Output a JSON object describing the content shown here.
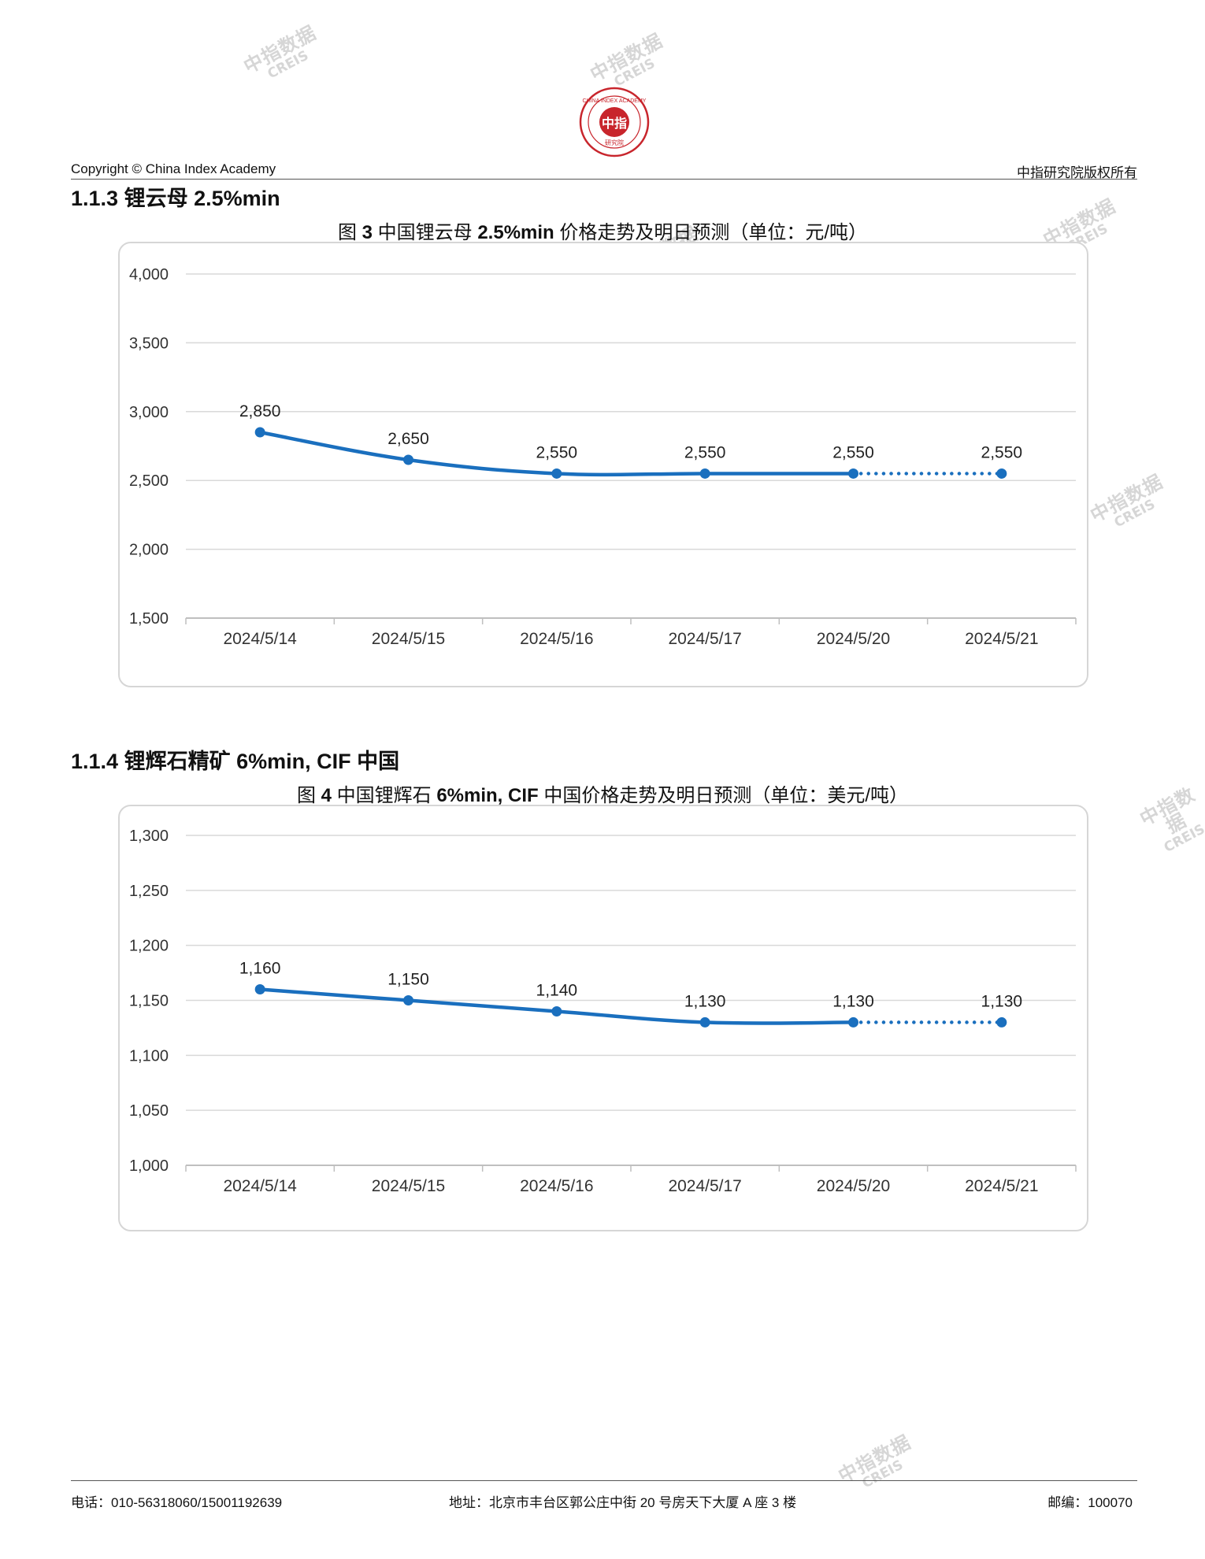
{
  "header": {
    "logo_text": "CHINA INDEX ACADEMY",
    "logo_center": "中指",
    "logo_bottom": "研究院",
    "copyright": "Copyright © China Index Academy",
    "rights": "中指研究院版权所有"
  },
  "watermark": {
    "line1": "中指数据",
    "line2": "CREIS",
    "color": "#c9c9c9"
  },
  "sections": [
    {
      "heading_number": "1.1.3",
      "heading_text": "锂云母 2.5%min",
      "caption_prefix": "图",
      "caption_number": "3",
      "caption_text": "中国锂云母",
      "caption_bold": "2.5%min",
      "caption_suffix": "价格走势及明日预测（单位：元/吨）"
    },
    {
      "heading_number": "1.1.4",
      "heading_text": "锂辉石精矿 6%min, CIF 中国",
      "caption_prefix": "图",
      "caption_number": "4",
      "caption_text": "中国锂辉石",
      "caption_bold": "6%min, CIF",
      "caption_suffix": "中国价格走势及明日预测（单位：美元/吨）"
    }
  ],
  "chart_data": [
    {
      "type": "line",
      "categories": [
        "2024/5/14",
        "2024/5/15",
        "2024/5/16",
        "2024/5/17",
        "2024/5/20",
        "2024/5/21"
      ],
      "series": [
        {
          "values": [
            2850,
            2650,
            2550,
            2550,
            2550,
            2550
          ],
          "forecast_last": true
        }
      ],
      "data_labels": [
        "2,850",
        "2,650",
        "2,550",
        "2,550",
        "2,550",
        "2,550"
      ],
      "yticks": [
        "1,500",
        "2,000",
        "2,500",
        "3,000",
        "3,500",
        "4,000"
      ],
      "ylim": [
        1500,
        4000
      ],
      "grid": true,
      "line_color": "#1a6fbe"
    },
    {
      "type": "line",
      "categories": [
        "2024/5/14",
        "2024/5/15",
        "2024/5/16",
        "2024/5/17",
        "2024/5/20",
        "2024/5/21"
      ],
      "series": [
        {
          "values": [
            1160,
            1150,
            1140,
            1130,
            1130,
            1130
          ],
          "forecast_last": true
        }
      ],
      "data_labels": [
        "1,160",
        "1,150",
        "1,140",
        "1,130",
        "1,130",
        "1,130"
      ],
      "yticks": [
        "1,000",
        "1,050",
        "1,100",
        "1,150",
        "1,200",
        "1,250",
        "1,300"
      ],
      "ylim": [
        1000,
        1300
      ],
      "grid": true,
      "line_color": "#1a6fbe"
    }
  ],
  "footer": {
    "phone": "电话：010-56318060/15001192639",
    "address": "地址：北京市丰台区郭公庄中街 20 号房天下大厦 A 座 3 楼",
    "postcode": "邮编：100070"
  }
}
